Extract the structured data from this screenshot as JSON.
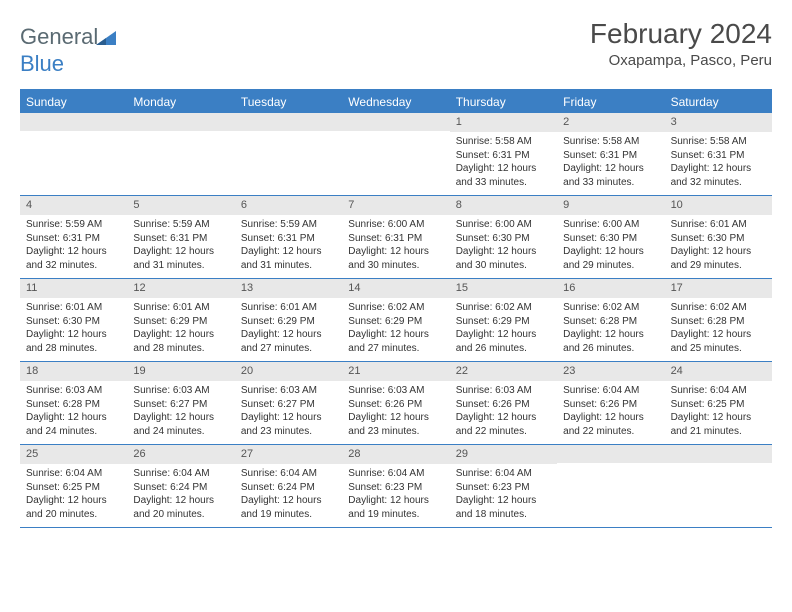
{
  "brand": {
    "word1": "General",
    "word2": "Blue"
  },
  "title": "February 2024",
  "location": "Oxapampa, Pasco, Peru",
  "colors": {
    "accent": "#3b7fc4",
    "header_bg": "#3b7fc4",
    "day_num_bg": "#e8e8e8",
    "text": "#333333",
    "logo_gray": "#5a6a72"
  },
  "day_headers": [
    "Sunday",
    "Monday",
    "Tuesday",
    "Wednesday",
    "Thursday",
    "Friday",
    "Saturday"
  ],
  "weeks": [
    [
      {
        "num": "",
        "sunrise": "",
        "sunset": "",
        "daylight": ""
      },
      {
        "num": "",
        "sunrise": "",
        "sunset": "",
        "daylight": ""
      },
      {
        "num": "",
        "sunrise": "",
        "sunset": "",
        "daylight": ""
      },
      {
        "num": "",
        "sunrise": "",
        "sunset": "",
        "daylight": ""
      },
      {
        "num": "1",
        "sunrise": "Sunrise: 5:58 AM",
        "sunset": "Sunset: 6:31 PM",
        "daylight": "Daylight: 12 hours and 33 minutes."
      },
      {
        "num": "2",
        "sunrise": "Sunrise: 5:58 AM",
        "sunset": "Sunset: 6:31 PM",
        "daylight": "Daylight: 12 hours and 33 minutes."
      },
      {
        "num": "3",
        "sunrise": "Sunrise: 5:58 AM",
        "sunset": "Sunset: 6:31 PM",
        "daylight": "Daylight: 12 hours and 32 minutes."
      }
    ],
    [
      {
        "num": "4",
        "sunrise": "Sunrise: 5:59 AM",
        "sunset": "Sunset: 6:31 PM",
        "daylight": "Daylight: 12 hours and 32 minutes."
      },
      {
        "num": "5",
        "sunrise": "Sunrise: 5:59 AM",
        "sunset": "Sunset: 6:31 PM",
        "daylight": "Daylight: 12 hours and 31 minutes."
      },
      {
        "num": "6",
        "sunrise": "Sunrise: 5:59 AM",
        "sunset": "Sunset: 6:31 PM",
        "daylight": "Daylight: 12 hours and 31 minutes."
      },
      {
        "num": "7",
        "sunrise": "Sunrise: 6:00 AM",
        "sunset": "Sunset: 6:31 PM",
        "daylight": "Daylight: 12 hours and 30 minutes."
      },
      {
        "num": "8",
        "sunrise": "Sunrise: 6:00 AM",
        "sunset": "Sunset: 6:30 PM",
        "daylight": "Daylight: 12 hours and 30 minutes."
      },
      {
        "num": "9",
        "sunrise": "Sunrise: 6:00 AM",
        "sunset": "Sunset: 6:30 PM",
        "daylight": "Daylight: 12 hours and 29 minutes."
      },
      {
        "num": "10",
        "sunrise": "Sunrise: 6:01 AM",
        "sunset": "Sunset: 6:30 PM",
        "daylight": "Daylight: 12 hours and 29 minutes."
      }
    ],
    [
      {
        "num": "11",
        "sunrise": "Sunrise: 6:01 AM",
        "sunset": "Sunset: 6:30 PM",
        "daylight": "Daylight: 12 hours and 28 minutes."
      },
      {
        "num": "12",
        "sunrise": "Sunrise: 6:01 AM",
        "sunset": "Sunset: 6:29 PM",
        "daylight": "Daylight: 12 hours and 28 minutes."
      },
      {
        "num": "13",
        "sunrise": "Sunrise: 6:01 AM",
        "sunset": "Sunset: 6:29 PM",
        "daylight": "Daylight: 12 hours and 27 minutes."
      },
      {
        "num": "14",
        "sunrise": "Sunrise: 6:02 AM",
        "sunset": "Sunset: 6:29 PM",
        "daylight": "Daylight: 12 hours and 27 minutes."
      },
      {
        "num": "15",
        "sunrise": "Sunrise: 6:02 AM",
        "sunset": "Sunset: 6:29 PM",
        "daylight": "Daylight: 12 hours and 26 minutes."
      },
      {
        "num": "16",
        "sunrise": "Sunrise: 6:02 AM",
        "sunset": "Sunset: 6:28 PM",
        "daylight": "Daylight: 12 hours and 26 minutes."
      },
      {
        "num": "17",
        "sunrise": "Sunrise: 6:02 AM",
        "sunset": "Sunset: 6:28 PM",
        "daylight": "Daylight: 12 hours and 25 minutes."
      }
    ],
    [
      {
        "num": "18",
        "sunrise": "Sunrise: 6:03 AM",
        "sunset": "Sunset: 6:28 PM",
        "daylight": "Daylight: 12 hours and 24 minutes."
      },
      {
        "num": "19",
        "sunrise": "Sunrise: 6:03 AM",
        "sunset": "Sunset: 6:27 PM",
        "daylight": "Daylight: 12 hours and 24 minutes."
      },
      {
        "num": "20",
        "sunrise": "Sunrise: 6:03 AM",
        "sunset": "Sunset: 6:27 PM",
        "daylight": "Daylight: 12 hours and 23 minutes."
      },
      {
        "num": "21",
        "sunrise": "Sunrise: 6:03 AM",
        "sunset": "Sunset: 6:26 PM",
        "daylight": "Daylight: 12 hours and 23 minutes."
      },
      {
        "num": "22",
        "sunrise": "Sunrise: 6:03 AM",
        "sunset": "Sunset: 6:26 PM",
        "daylight": "Daylight: 12 hours and 22 minutes."
      },
      {
        "num": "23",
        "sunrise": "Sunrise: 6:04 AM",
        "sunset": "Sunset: 6:26 PM",
        "daylight": "Daylight: 12 hours and 22 minutes."
      },
      {
        "num": "24",
        "sunrise": "Sunrise: 6:04 AM",
        "sunset": "Sunset: 6:25 PM",
        "daylight": "Daylight: 12 hours and 21 minutes."
      }
    ],
    [
      {
        "num": "25",
        "sunrise": "Sunrise: 6:04 AM",
        "sunset": "Sunset: 6:25 PM",
        "daylight": "Daylight: 12 hours and 20 minutes."
      },
      {
        "num": "26",
        "sunrise": "Sunrise: 6:04 AM",
        "sunset": "Sunset: 6:24 PM",
        "daylight": "Daylight: 12 hours and 20 minutes."
      },
      {
        "num": "27",
        "sunrise": "Sunrise: 6:04 AM",
        "sunset": "Sunset: 6:24 PM",
        "daylight": "Daylight: 12 hours and 19 minutes."
      },
      {
        "num": "28",
        "sunrise": "Sunrise: 6:04 AM",
        "sunset": "Sunset: 6:23 PM",
        "daylight": "Daylight: 12 hours and 19 minutes."
      },
      {
        "num": "29",
        "sunrise": "Sunrise: 6:04 AM",
        "sunset": "Sunset: 6:23 PM",
        "daylight": "Daylight: 12 hours and 18 minutes."
      },
      {
        "num": "",
        "sunrise": "",
        "sunset": "",
        "daylight": ""
      },
      {
        "num": "",
        "sunrise": "",
        "sunset": "",
        "daylight": ""
      }
    ]
  ]
}
